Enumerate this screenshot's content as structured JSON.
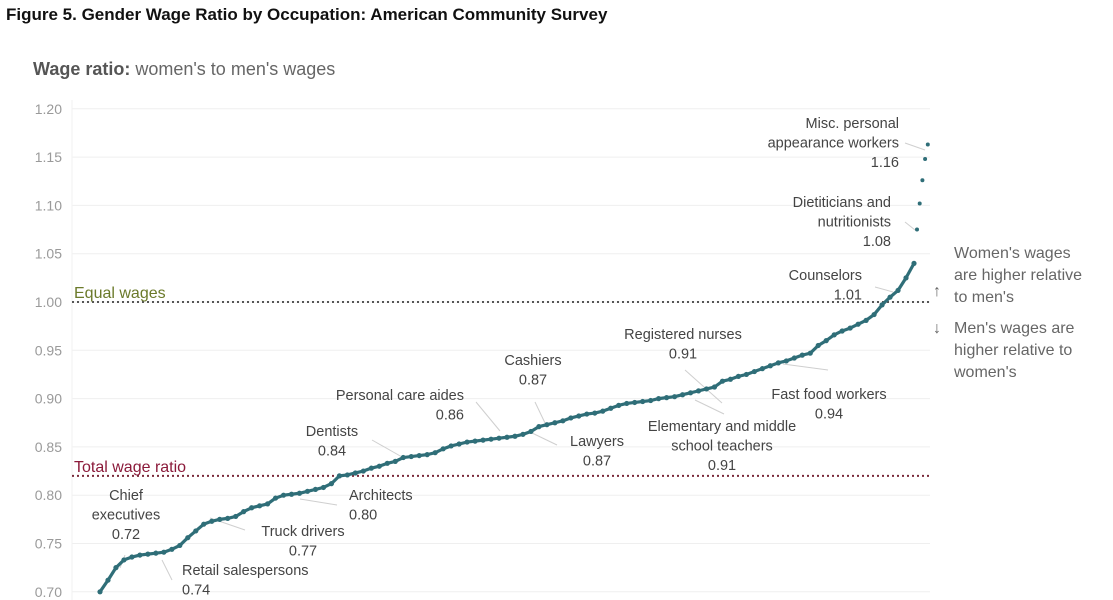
{
  "title": "Figure 5. Gender Wage Ratio by Occupation: American Community Survey",
  "chart_data": {
    "type": "scatter",
    "subtitle_bold": "Wage ratio:",
    "subtitle_rest": " women's to men's wages",
    "ylim": [
      0.7,
      1.2
    ],
    "yticks": [
      "1.20",
      "1.15",
      "1.10",
      "1.05",
      "1.00",
      "0.95",
      "0.90",
      "0.85",
      "0.80",
      "0.75",
      "0.70"
    ],
    "grid": true,
    "point_color": "#2f6e78",
    "reference_lines": [
      {
        "label": "Equal wages",
        "value": 1.0,
        "color": "#6b7a2a"
      },
      {
        "label": "Total wage ratio",
        "value": 0.82,
        "color": "#8b1a3a"
      }
    ],
    "values": [
      0.7,
      0.712,
      0.725,
      0.733,
      0.736,
      0.738,
      0.739,
      0.74,
      0.741,
      0.744,
      0.748,
      0.756,
      0.763,
      0.77,
      0.773,
      0.775,
      0.776,
      0.778,
      0.783,
      0.787,
      0.789,
      0.791,
      0.797,
      0.8,
      0.801,
      0.802,
      0.804,
      0.806,
      0.808,
      0.812,
      0.82,
      0.821,
      0.823,
      0.825,
      0.828,
      0.83,
      0.833,
      0.835,
      0.839,
      0.84,
      0.841,
      0.842,
      0.844,
      0.848,
      0.851,
      0.853,
      0.855,
      0.856,
      0.857,
      0.858,
      0.859,
      0.86,
      0.861,
      0.863,
      0.866,
      0.871,
      0.873,
      0.875,
      0.877,
      0.88,
      0.882,
      0.884,
      0.885,
      0.887,
      0.89,
      0.893,
      0.895,
      0.896,
      0.897,
      0.898,
      0.9,
      0.901,
      0.902,
      0.904,
      0.906,
      0.908,
      0.91,
      0.912,
      0.918,
      0.92,
      0.923,
      0.925,
      0.928,
      0.931,
      0.934,
      0.937,
      0.939,
      0.942,
      0.945,
      0.947,
      0.955,
      0.96,
      0.966,
      0.97,
      0.973,
      0.977,
      0.981,
      0.987,
      0.997,
      1.005,
      1.012,
      1.025,
      1.04,
      1.075,
      1.102,
      1.126,
      1.148,
      1.163
    ],
    "annotations": [
      {
        "lines": [
          "Misc. personal",
          "appearance workers",
          "1.16"
        ]
      },
      {
        "lines": [
          "Dietiticians and",
          "nutritionists",
          "1.08"
        ]
      },
      {
        "lines": [
          "Counselors",
          "1.01"
        ]
      },
      {
        "lines": [
          "Registered nurses",
          "0.91"
        ]
      },
      {
        "lines": [
          "Cashiers",
          "0.87"
        ]
      },
      {
        "lines": [
          "Personal care aides",
          "0.86"
        ]
      },
      {
        "lines": [
          "Dentists",
          "0.84"
        ]
      },
      {
        "lines": [
          "Lawyers",
          "0.87"
        ]
      },
      {
        "lines": [
          "Elementary and middle",
          "school teachers",
          "0.91"
        ]
      },
      {
        "lines": [
          "Fast food workers",
          "0.94"
        ]
      },
      {
        "lines": [
          "Architects",
          "0.80"
        ]
      },
      {
        "lines": [
          "Chief",
          "executives",
          "0.72"
        ]
      },
      {
        "lines": [
          "Truck drivers",
          "0.77"
        ]
      },
      {
        "lines": [
          "Retail salespersons",
          "0.74"
        ]
      }
    ],
    "side_notes": {
      "up_arrow": "↑",
      "up_lines": [
        "Women's wages",
        "are higher relative",
        "to men's"
      ],
      "down_arrow": "↓",
      "down_lines": [
        "Men's wages are",
        "higher relative to",
        "women's"
      ]
    }
  }
}
